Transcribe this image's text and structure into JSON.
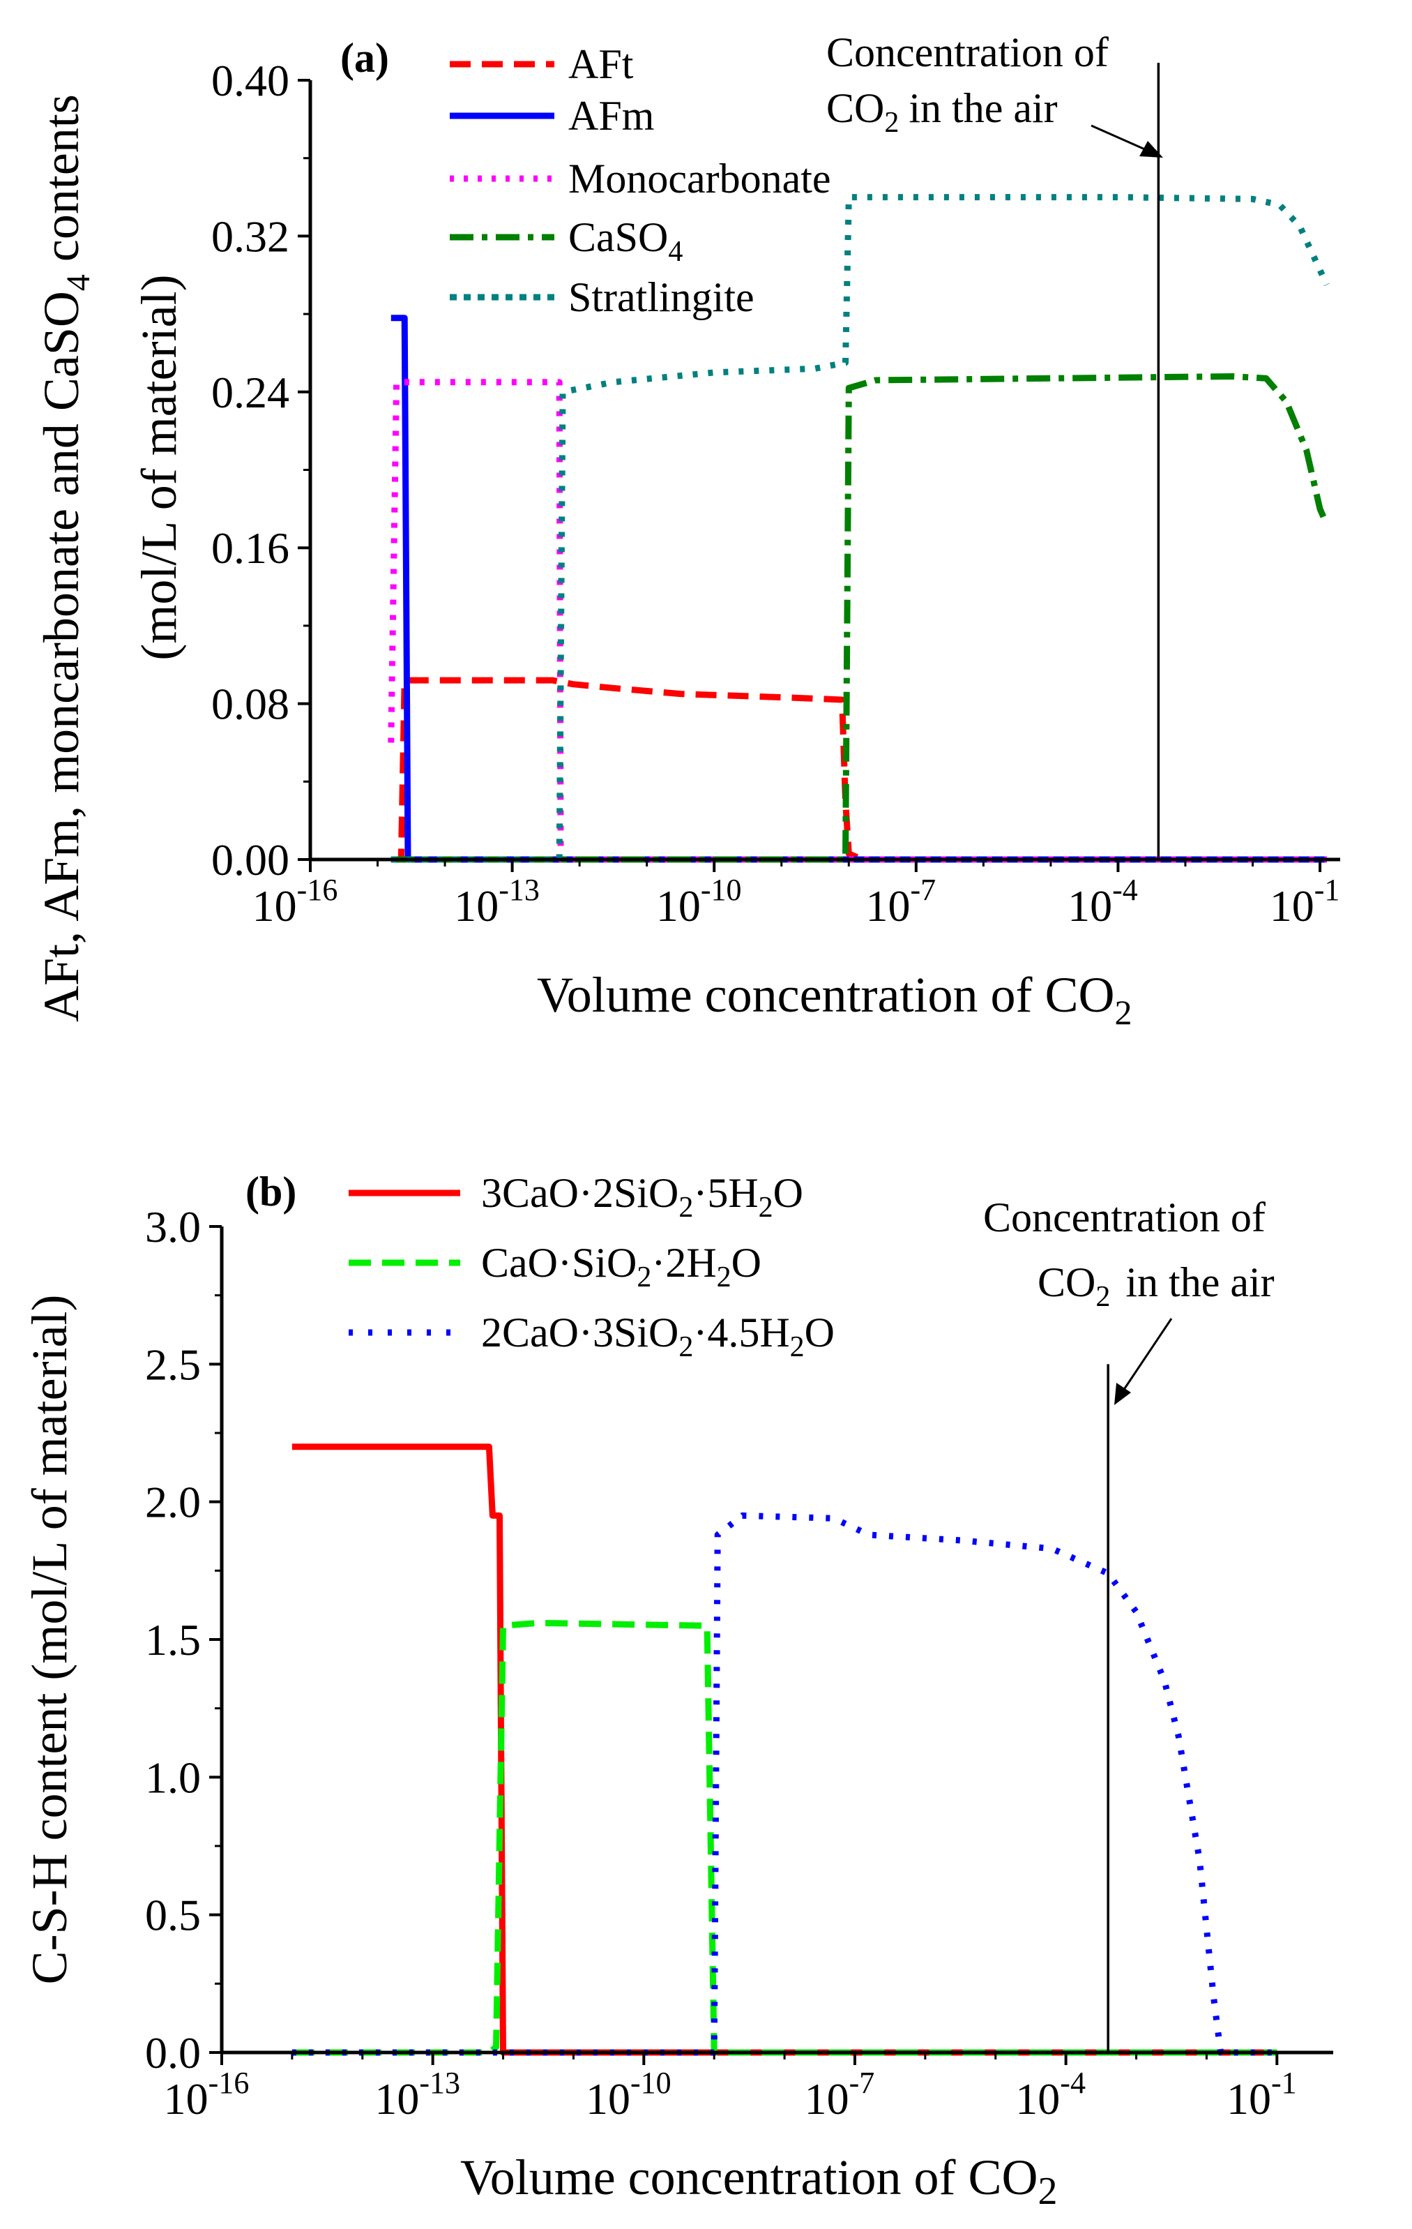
{
  "chart_data": [
    {
      "type": "line",
      "panel_label": "(a)",
      "xscale": "log10",
      "xlim_exp": [
        -16,
        -0.7
      ],
      "xticks_exp": [
        -16,
        -13,
        -10,
        -7,
        -4,
        -1
      ],
      "xtick_base": "10",
      "xlabel": "Volume concentration of CO",
      "xlabel_sub": "2",
      "ylabel": {
        "pre": "AFt, AFm, moncarbonate and CaSO",
        "sub": "4",
        "post": " contents",
        "line2": "(mol/L of material)"
      },
      "ylim": [
        0,
        0.4
      ],
      "yticks": [
        "0.00",
        "0.08",
        "0.16",
        "0.24",
        "0.32",
        "0.40"
      ],
      "reference_line": {
        "x_exp": -3.4,
        "label_lines": [
          "Concentration of",
          "in the air"
        ],
        "label_co": "CO",
        "label_sub": "2"
      },
      "series": [
        {
          "name": "AFt",
          "name_sub": "",
          "name_post": "",
          "color": "#ff0000",
          "style": "dashed",
          "points": [
            [
              -14.8,
              0
            ],
            [
              -14.65,
              0
            ],
            [
              -14.6,
              0.092
            ],
            [
              -12.4,
              0.092
            ],
            [
              -12.1,
              0.09
            ],
            [
              -11.5,
              0.088
            ],
            [
              -10.5,
              0.085
            ],
            [
              -8.8,
              0.083
            ],
            [
              -8.1,
              0.082
            ],
            [
              -8.05,
              0.03
            ],
            [
              -8,
              0.003
            ],
            [
              -7.8,
              0
            ],
            [
              -0.9,
              0
            ]
          ]
        },
        {
          "name": "AFm",
          "name_sub": "",
          "name_post": "",
          "color": "#0000ff",
          "style": "solid",
          "points": [
            [
              -14.8,
              0.278
            ],
            [
              -14.6,
              0.278
            ],
            [
              -14.55,
              0
            ],
            [
              -0.9,
              0
            ]
          ]
        },
        {
          "name": "Monocarbonate",
          "name_sub": "",
          "name_post": "",
          "color": "#ff00ff",
          "style": "dotted",
          "points": [
            [
              -14.8,
              0.06
            ],
            [
              -14.72,
              0.245
            ],
            [
              -12.3,
              0.245
            ],
            [
              -12.28,
              0
            ],
            [
              -0.9,
              0
            ]
          ]
        },
        {
          "name": "CaSO",
          "name_sub": "4",
          "name_post": "",
          "color": "#008000",
          "style": "dashdot",
          "points": [
            [
              -14.8,
              0
            ],
            [
              -8.05,
              0
            ],
            [
              -8,
              0.242
            ],
            [
              -7.6,
              0.246
            ],
            [
              -5,
              0.247
            ],
            [
              -2.3,
              0.248
            ],
            [
              -1.8,
              0.247
            ],
            [
              -1.5,
              0.235
            ],
            [
              -1.2,
              0.21
            ],
            [
              -1,
              0.18
            ],
            [
              -0.9,
              0.172
            ]
          ]
        },
        {
          "name": "Stratlingite",
          "name_sub": "",
          "name_post": "",
          "color": "#008080",
          "style": "dotted",
          "points": [
            [
              -14.8,
              0
            ],
            [
              -12.3,
              0
            ],
            [
              -12.25,
              0.24
            ],
            [
              -11.5,
              0.245
            ],
            [
              -10,
              0.25
            ],
            [
              -8.5,
              0.252
            ],
            [
              -8.05,
              0.255
            ],
            [
              -8,
              0.34
            ],
            [
              -4,
              0.34
            ],
            [
              -2,
              0.339
            ],
            [
              -1.6,
              0.336
            ],
            [
              -1.3,
              0.325
            ],
            [
              -1.1,
              0.31
            ],
            [
              -0.9,
              0.295
            ]
          ]
        }
      ]
    },
    {
      "type": "line",
      "panel_label": "(b)",
      "xscale": "log10",
      "xlim_exp": [
        -16,
        -0.2
      ],
      "xticks_exp": [
        -16,
        -13,
        -10,
        -7,
        -4,
        -1
      ],
      "xtick_base": "10",
      "xlabel": "Volume concentration of CO",
      "xlabel_sub": "2",
      "ylabel": {
        "pre": "C-S-H content (mol/L of material)",
        "sub": "",
        "post": "",
        "line2": ""
      },
      "ylim": [
        0,
        3.0
      ],
      "yticks": [
        "0.0",
        "0.5",
        "1.0",
        "1.5",
        "2.0",
        "2.5",
        "3.0"
      ],
      "reference_line": {
        "x_exp": -3.4,
        "label_lines": [
          "Concentration of",
          "in the air"
        ],
        "label_co": "CO",
        "label_sub": "2"
      },
      "series": [
        {
          "name": "3CaO·2SiO",
          "name_sub": "2",
          "name_post": "·5H",
          "name_sub2": "2",
          "name_post2": "O",
          "color": "#ff0000",
          "style": "solid",
          "points": [
            [
              -15,
              2.2
            ],
            [
              -12.2,
              2.2
            ],
            [
              -12.15,
              1.95
            ],
            [
              -12.05,
              1.95
            ],
            [
              -12,
              0
            ],
            [
              -1,
              0
            ]
          ]
        },
        {
          "name": "CaO·SiO",
          "name_sub": "2",
          "name_post": "·2H",
          "name_sub2": "2",
          "name_post2": "O",
          "color": "#00ee00",
          "style": "dashed",
          "points": [
            [
              -15,
              0
            ],
            [
              -12.2,
              0
            ],
            [
              -12.1,
              0.02
            ],
            [
              -12,
              1.55
            ],
            [
              -11.5,
              1.56
            ],
            [
              -9.1,
              1.55
            ],
            [
              -9,
              0
            ],
            [
              -1,
              0
            ]
          ]
        },
        {
          "name": "2CaO·3SiO",
          "name_sub": "2",
          "name_post": "·4.5H",
          "name_sub2": "2",
          "name_post2": "O",
          "color": "#0000ff",
          "style": "dotted",
          "points": [
            [
              -15,
              0
            ],
            [
              -9,
              0
            ],
            [
              -8.95,
              1.88
            ],
            [
              -8.6,
              1.95
            ],
            [
              -7.3,
              1.94
            ],
            [
              -6.8,
              1.88
            ],
            [
              -5.5,
              1.86
            ],
            [
              -4.2,
              1.83
            ],
            [
              -3.4,
              1.74
            ],
            [
              -3,
              1.6
            ],
            [
              -2.6,
              1.35
            ],
            [
              -2.4,
              1.15
            ],
            [
              -2.1,
              0.7
            ],
            [
              -1.9,
              0.2
            ],
            [
              -1.8,
              0
            ],
            [
              -1,
              0
            ]
          ]
        }
      ]
    }
  ]
}
